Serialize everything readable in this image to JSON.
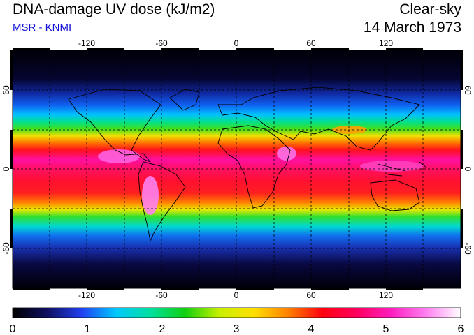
{
  "header": {
    "title": "DNA-damage UV dose (kJ/m2)",
    "source": "MSR - KNMI",
    "condition": "Clear-sky",
    "date": "14 March 1973"
  },
  "map": {
    "lon_ticks": [
      "-120",
      "-60",
      "0",
      "60",
      "120"
    ],
    "lat_ticks_left": [
      "60",
      "0",
      "-60"
    ],
    "lat_ticks_right": [
      "60",
      "0",
      "-60"
    ]
  },
  "colorbar": {
    "labels": [
      "0",
      "1",
      "2",
      "3",
      "4",
      "5",
      "6"
    ],
    "range": [
      0,
      6
    ],
    "stops": [
      "#000000",
      "#101060",
      "#2040f0",
      "#00c8ff",
      "#00e0a0",
      "#10d010",
      "#c8f000",
      "#ffe000",
      "#ff8000",
      "#ff0010",
      "#ff0060",
      "#ff20c0",
      "#ff80f0",
      "#ffffff"
    ]
  }
}
